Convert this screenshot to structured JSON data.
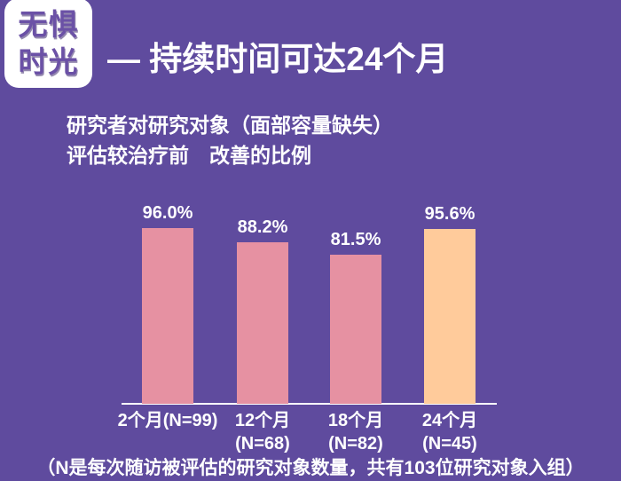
{
  "badge": {
    "line1": "无惧",
    "line2": "时光"
  },
  "header": {
    "title": "— 持续时间可达24个月"
  },
  "chart": {
    "subtitle_line1": "研究者对研究对象（面部容量缺失）",
    "subtitle_line2": "评估较治疗前　改善的比例"
  },
  "chart_data": {
    "type": "bar",
    "title": "研究者对研究对象（面部容量缺失）评估较治疗前改善的比例",
    "categories": [
      [
        "2个月(N=99)"
      ],
      [
        "12个月",
        "(N=68)"
      ],
      [
        "18个月",
        "(N=82)"
      ],
      [
        "24个月",
        "(N=45)"
      ]
    ],
    "values": [
      96.0,
      88.2,
      81.5,
      95.6
    ],
    "value_labels": [
      "96.0%",
      "88.2%",
      "81.5%",
      "95.6%"
    ],
    "bar_colors": [
      "#e691a2",
      "#e691a2",
      "#e691a2",
      "#ffcb9b"
    ],
    "xlabel": "",
    "ylabel": "",
    "ylim": [
      0,
      100
    ],
    "grid": false,
    "legend": null
  },
  "footnote": "（N是每次随访被评估的研究对象数量，共有103位研究对象入组）",
  "colors": {
    "background": "#5f4b9e",
    "bar_pink": "#e691a2",
    "bar_peach": "#ffcb9b",
    "badge_background": "#ffffff",
    "badge_text": "#6b51a6",
    "text": "#ffffff",
    "axis": "#ffffff"
  }
}
